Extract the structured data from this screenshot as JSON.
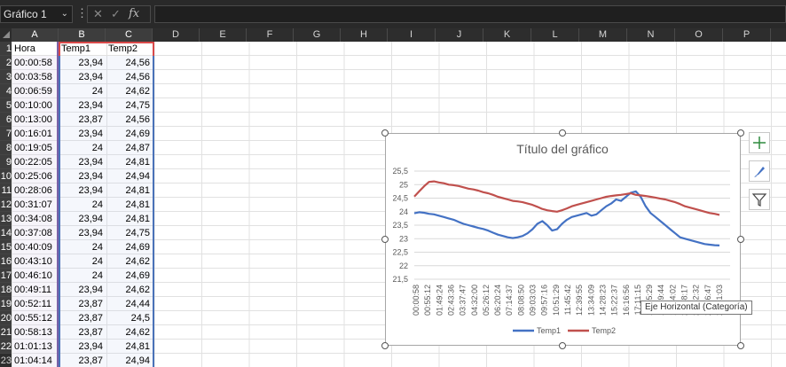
{
  "formula_bar": {
    "name_box": "Gráfico 1",
    "dots": "⋮",
    "cancel": "✕",
    "enter": "✓",
    "fx": "fx",
    "formula": ""
  },
  "columns": [
    "A",
    "B",
    "C",
    "D",
    "E",
    "F",
    "G",
    "H",
    "I",
    "J",
    "K",
    "L",
    "M",
    "N",
    "O",
    "P"
  ],
  "rows": [
    "1",
    "2",
    "3",
    "4",
    "5",
    "6",
    "7",
    "8",
    "9",
    "10",
    "11",
    "12",
    "13",
    "14",
    "15",
    "16",
    "17",
    "18",
    "19",
    "20",
    "21",
    "22",
    "23"
  ],
  "sheet": {
    "headers": [
      "Hora",
      "Temp1",
      "Temp2"
    ],
    "data": [
      [
        "00:00:58",
        "23,94",
        "24,56"
      ],
      [
        "00:03:58",
        "23,94",
        "24,56"
      ],
      [
        "00:06:59",
        "24",
        "24,62"
      ],
      [
        "00:10:00",
        "23,94",
        "24,75"
      ],
      [
        "00:13:00",
        "23,87",
        "24,56"
      ],
      [
        "00:16:01",
        "23,94",
        "24,69"
      ],
      [
        "00:19:05",
        "24",
        "24,87"
      ],
      [
        "00:22:05",
        "23,94",
        "24,81"
      ],
      [
        "00:25:06",
        "23,94",
        "24,94"
      ],
      [
        "00:28:06",
        "23,94",
        "24,81"
      ],
      [
        "00:31:07",
        "24",
        "24,81"
      ],
      [
        "00:34:08",
        "23,94",
        "24,81"
      ],
      [
        "00:37:08",
        "23,94",
        "24,75"
      ],
      [
        "00:40:09",
        "24",
        "24,69"
      ],
      [
        "00:43:10",
        "24",
        "24,62"
      ],
      [
        "00:46:10",
        "24",
        "24,69"
      ],
      [
        "00:49:11",
        "23,94",
        "24,62"
      ],
      [
        "00:52:11",
        "23,87",
        "24,44"
      ],
      [
        "00:55:12",
        "23,87",
        "24,5"
      ],
      [
        "00:58:13",
        "23,87",
        "24,62"
      ],
      [
        "01:01:13",
        "23,94",
        "24,81"
      ],
      [
        "01:04:14",
        "23,87",
        "24,94"
      ]
    ]
  },
  "chart_data": {
    "type": "line",
    "title": "Título del gráfico",
    "ylim": [
      21.5,
      25.5
    ],
    "yticks": [
      "25,5",
      "25",
      "24,5",
      "24",
      "23,5",
      "23",
      "22,5",
      "22",
      "21,5"
    ],
    "xticks": [
      "00:00:58",
      "00:55:12",
      "01:49:24",
      "02:43:36",
      "03:37:47",
      "04:32:00",
      "05:26:12",
      "06:20:24",
      "07:14:37",
      "08:08:50",
      "09:03:03",
      "09:57:16",
      "10:51:29",
      "11:45:42",
      "12:39:55",
      "13:34:09",
      "14:28:23",
      "15:22:37",
      "16:16:56",
      "17:11:15",
      "18:05:29",
      "18:59:44",
      "19:54:02",
      "20:48:17",
      "21:42:32",
      "22:36:47",
      "23:31:03"
    ],
    "grid": true,
    "legend_position": "bottom",
    "series": [
      {
        "name": "Temp1",
        "color": "#4472c4",
        "values": [
          23.94,
          23.98,
          23.96,
          23.92,
          23.9,
          23.85,
          23.8,
          23.75,
          23.7,
          23.62,
          23.55,
          23.5,
          23.45,
          23.4,
          23.36,
          23.3,
          23.22,
          23.15,
          23.1,
          23.05,
          23.02,
          23.05,
          23.1,
          23.2,
          23.35,
          23.55,
          23.65,
          23.5,
          23.3,
          23.35,
          23.55,
          23.7,
          23.8,
          23.85,
          23.9,
          23.95,
          23.85,
          23.9,
          24.05,
          24.2,
          24.3,
          24.45,
          24.4,
          24.55,
          24.7,
          24.75,
          24.55,
          24.2,
          23.95,
          23.8,
          23.65,
          23.5,
          23.35,
          23.2,
          23.05,
          23.0,
          22.95,
          22.9,
          22.85,
          22.8,
          22.78,
          22.76,
          22.75
        ]
      },
      {
        "name": "Temp2",
        "color": "#c0504d",
        "values": [
          24.56,
          24.75,
          24.94,
          25.1,
          25.12,
          25.08,
          25.05,
          25.0,
          24.98,
          24.95,
          24.9,
          24.85,
          24.82,
          24.78,
          24.72,
          24.68,
          24.62,
          24.55,
          24.5,
          24.45,
          24.4,
          24.38,
          24.35,
          24.3,
          24.25,
          24.18,
          24.1,
          24.05,
          24.02,
          24.0,
          24.05,
          24.12,
          24.2,
          24.25,
          24.3,
          24.35,
          24.4,
          24.45,
          24.5,
          24.55,
          24.58,
          24.6,
          24.62,
          24.65,
          24.68,
          24.62,
          24.6,
          24.58,
          24.55,
          24.52,
          24.48,
          24.45,
          24.4,
          24.35,
          24.28,
          24.2,
          24.15,
          24.1,
          24.05,
          24.0,
          23.95,
          23.92,
          23.88
        ]
      }
    ]
  },
  "chart_ui": {
    "add_element": "+",
    "styles": "brush",
    "filter": "funnel",
    "tooltip": "Eje Horizontal (Categoría)"
  }
}
